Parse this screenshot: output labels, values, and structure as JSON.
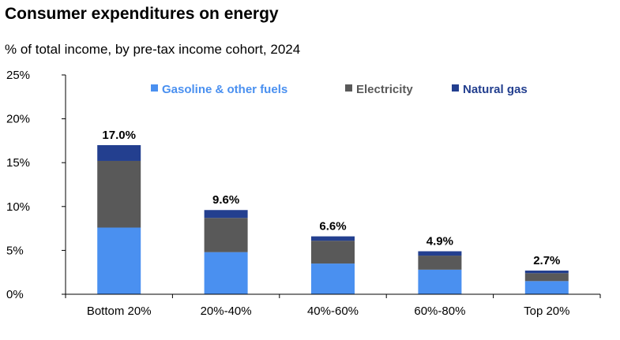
{
  "header": {
    "title": "Consumer expenditures on energy",
    "subtitle": "% of total income, by pre-tax income cohort, 2024"
  },
  "chart_data": {
    "type": "bar",
    "stacked": true,
    "categories": [
      "Bottom 20%",
      "20%-40%",
      "40%-60%",
      "60%-80%",
      "Top 20%"
    ],
    "series": [
      {
        "name": "Gasoline & other fuels",
        "color": "#4a90f0",
        "values": [
          7.6,
          4.8,
          3.5,
          2.8,
          1.5
        ]
      },
      {
        "name": "Electricity",
        "color": "#595959",
        "values": [
          7.6,
          3.9,
          2.6,
          1.6,
          0.9
        ]
      },
      {
        "name": "Natural gas",
        "color": "#233f8f",
        "values": [
          1.8,
          0.9,
          0.5,
          0.5,
          0.3
        ]
      }
    ],
    "totals": [
      17.0,
      9.6,
      6.6,
      4.9,
      2.7
    ],
    "total_labels": [
      "17.0%",
      "9.6%",
      "6.6%",
      "4.9%",
      "2.7%"
    ],
    "y_ticks": [
      "0%",
      "5%",
      "10%",
      "15%",
      "20%",
      "25%"
    ],
    "ylim": [
      0,
      25
    ],
    "legend_position": "top",
    "grid": false
  }
}
